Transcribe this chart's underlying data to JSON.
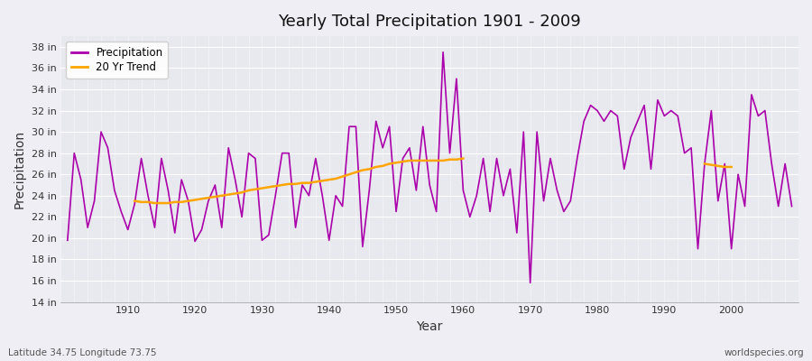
{
  "title": "Yearly Total Precipitation 1901 - 2009",
  "xlabel": "Year",
  "ylabel": "Precipitation",
  "subtitle": "Latitude 34.75 Longitude 73.75",
  "watermark": "worldspecies.org",
  "years": [
    1901,
    1902,
    1903,
    1904,
    1905,
    1906,
    1907,
    1908,
    1909,
    1910,
    1911,
    1912,
    1913,
    1914,
    1915,
    1916,
    1917,
    1918,
    1919,
    1920,
    1921,
    1922,
    1923,
    1924,
    1925,
    1926,
    1927,
    1928,
    1929,
    1930,
    1931,
    1932,
    1933,
    1934,
    1935,
    1936,
    1937,
    1938,
    1939,
    1940,
    1941,
    1942,
    1943,
    1944,
    1945,
    1946,
    1947,
    1948,
    1949,
    1950,
    1951,
    1952,
    1953,
    1954,
    1955,
    1956,
    1957,
    1958,
    1959,
    1960,
    1961,
    1962,
    1963,
    1964,
    1965,
    1966,
    1967,
    1968,
    1969,
    1970,
    1971,
    1972,
    1973,
    1974,
    1975,
    1976,
    1977,
    1978,
    1979,
    1980,
    1981,
    1982,
    1983,
    1984,
    1985,
    1986,
    1987,
    1988,
    1989,
    1990,
    1991,
    1992,
    1993,
    1994,
    1995,
    1996,
    1997,
    1998,
    1999,
    2000,
    2001,
    2002,
    2003,
    2004,
    2005,
    2006,
    2007,
    2008,
    2009
  ],
  "precip_in": [
    19.8,
    28.0,
    25.5,
    21.0,
    23.5,
    30.0,
    28.5,
    24.5,
    22.5,
    20.8,
    23.2,
    27.5,
    24.0,
    21.0,
    27.5,
    24.5,
    20.5,
    25.5,
    23.5,
    19.7,
    20.8,
    23.5,
    25.0,
    21.0,
    28.5,
    25.5,
    22.0,
    28.0,
    27.5,
    19.8,
    20.3,
    24.0,
    28.0,
    28.0,
    21.0,
    25.0,
    24.0,
    27.5,
    24.0,
    19.8,
    24.0,
    23.0,
    30.5,
    30.5,
    19.2,
    24.5,
    31.0,
    28.5,
    30.5,
    22.5,
    27.5,
    28.5,
    24.5,
    30.5,
    25.0,
    22.5,
    37.5,
    28.0,
    35.0,
    24.5,
    22.0,
    24.0,
    27.5,
    22.5,
    27.5,
    24.0,
    26.5,
    20.5,
    30.0,
    15.8,
    30.0,
    23.5,
    27.5,
    24.5,
    22.5,
    23.5,
    27.5,
    31.0,
    32.5,
    32.0,
    31.0,
    32.0,
    31.5,
    26.5,
    29.5,
    31.0,
    32.5,
    26.5,
    33.0,
    31.5,
    32.0,
    31.5,
    28.0,
    28.5,
    19.0,
    27.0,
    32.0,
    23.5,
    27.0,
    19.0,
    26.0,
    23.0,
    33.5,
    31.5,
    32.0,
    27.0,
    23.0,
    27.0,
    23.0
  ],
  "trend_seg1_years": [
    1911,
    1912,
    1913,
    1914,
    1915,
    1916,
    1917,
    1918,
    1919,
    1920,
    1921,
    1922,
    1923,
    1924,
    1925,
    1926,
    1927,
    1928,
    1929,
    1930,
    1931,
    1932,
    1933,
    1934,
    1935,
    1936,
    1937,
    1938,
    1939,
    1940,
    1941,
    1942,
    1943,
    1944,
    1945,
    1946,
    1947,
    1948,
    1949,
    1950,
    1951,
    1952,
    1953,
    1954,
    1955,
    1956,
    1957,
    1958,
    1959,
    1960
  ],
  "trend_seg1_vals": [
    23.5,
    23.4,
    23.4,
    23.3,
    23.3,
    23.3,
    23.4,
    23.4,
    23.5,
    23.6,
    23.7,
    23.8,
    23.9,
    24.0,
    24.1,
    24.2,
    24.3,
    24.5,
    24.6,
    24.7,
    24.8,
    24.9,
    25.0,
    25.1,
    25.1,
    25.2,
    25.2,
    25.3,
    25.4,
    25.5,
    25.6,
    25.8,
    26.0,
    26.2,
    26.4,
    26.5,
    26.7,
    26.8,
    27.0,
    27.1,
    27.2,
    27.3,
    27.3,
    27.3,
    27.3,
    27.3,
    27.3,
    27.4,
    27.4,
    27.5
  ],
  "trend_seg2_years": [
    1996,
    1997,
    1998,
    1999,
    2000
  ],
  "trend_seg2_vals": [
    27.0,
    26.9,
    26.8,
    26.7,
    26.7
  ],
  "precip_color": "#AA00AA",
  "trend_color": "#FFA500",
  "bg_color": "#EEEEF4",
  "plot_bg_color": "#E8E8EF",
  "grid_color": "#FFFFFF",
  "ylim": [
    14,
    39
  ],
  "yticks": [
    14,
    16,
    18,
    20,
    22,
    24,
    26,
    28,
    30,
    32,
    34,
    36,
    38
  ],
  "xlim": [
    1900,
    2010
  ],
  "xticks": [
    1910,
    1920,
    1930,
    1940,
    1950,
    1960,
    1970,
    1980,
    1990,
    2000
  ]
}
